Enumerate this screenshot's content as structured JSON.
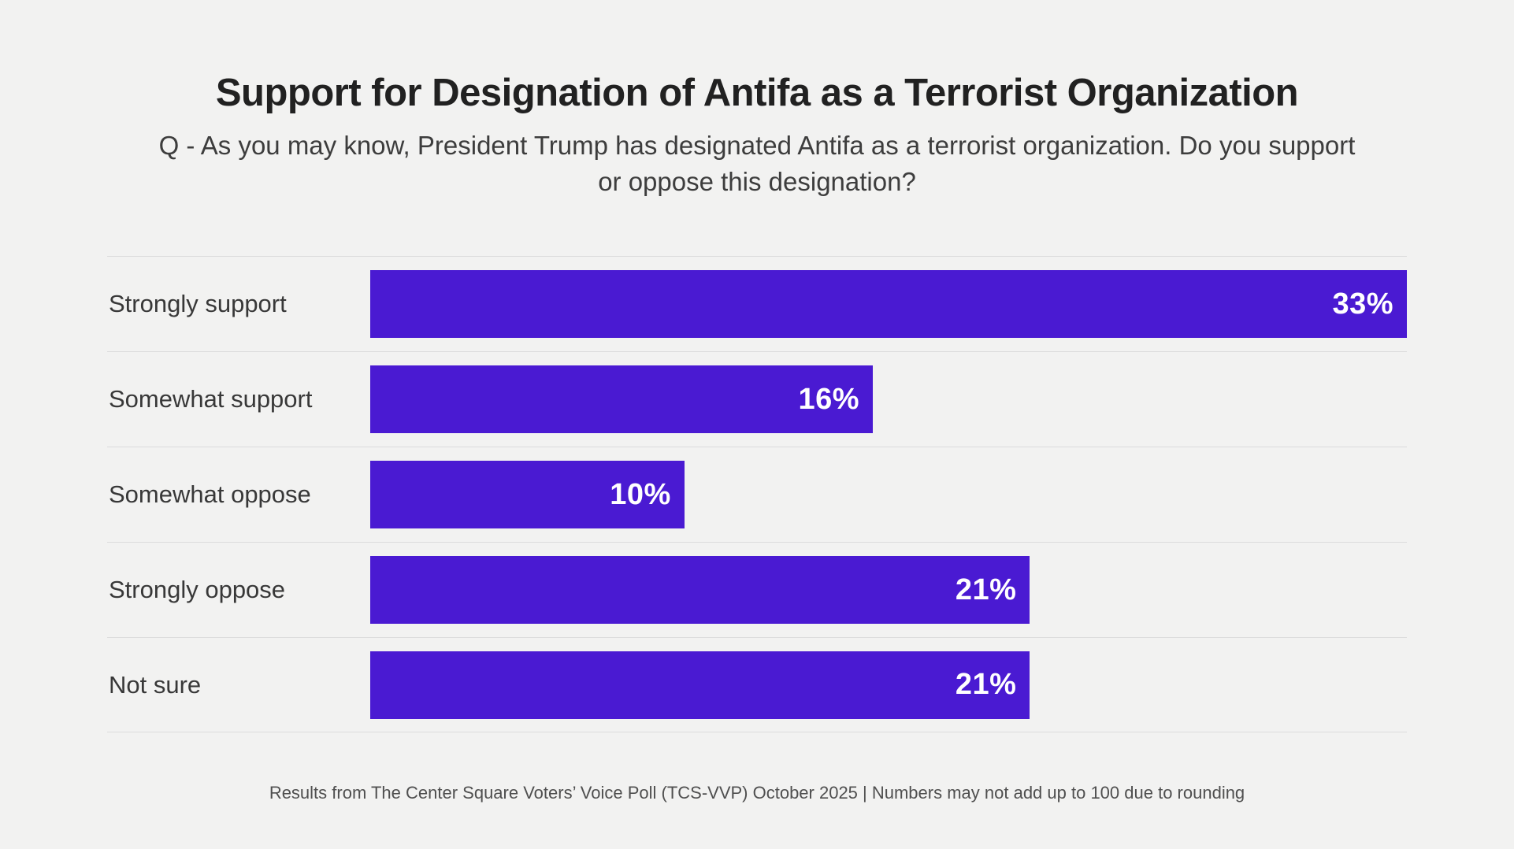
{
  "colors": {
    "background": "#f2f2f1",
    "bar": "#4a1ad2",
    "bar_value_text": "#ffffff",
    "title_text": "#212121",
    "subtitle_text": "#3d3d3d",
    "label_text": "#383838",
    "footer_text": "#4f4f4f",
    "divider": "#dcdcdc"
  },
  "chart_data": {
    "type": "bar",
    "orientation": "horizontal",
    "title": "Support for Designation of Antifa as a Terrorist Organization",
    "subtitle_lines": [
      "Q - As you may know, President Trump has designated Antifa as a terrorist organization. Do you support",
      "or oppose this designation?"
    ],
    "categories": [
      "Strongly support",
      "Somewhat support",
      "Somewhat oppose",
      "Strongly oppose",
      "Not sure"
    ],
    "values": [
      33,
      16,
      10,
      21,
      21
    ],
    "value_labels": [
      "33%",
      "16%",
      "10%",
      "21%",
      "21%"
    ],
    "xlim": [
      0,
      33
    ],
    "grid": "row-dividers-only",
    "legend": "none",
    "bar_color": "#4a1ad2",
    "footer": "Results from The Center Square Voters’ Voice Poll (TCS-VVP) October 2025 | Numbers may not add up to 100 due to rounding"
  }
}
